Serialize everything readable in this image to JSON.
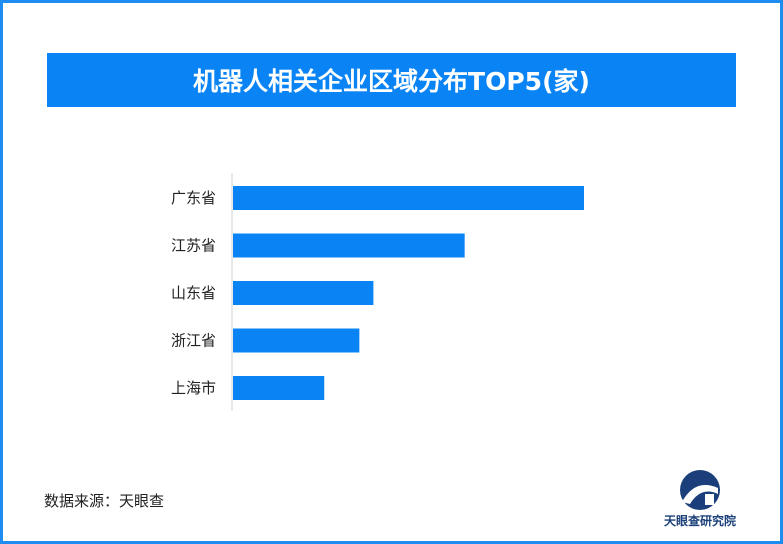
{
  "chart_data": {
    "type": "bar",
    "orientation": "horizontal",
    "title": "机器人相关企业区域分布TOP5(家)",
    "categories": [
      "广东省",
      "江苏省",
      "山东省",
      "浙江省",
      "上海市"
    ],
    "values": [
      100,
      66,
      40,
      36,
      26
    ],
    "xlim": [
      0,
      100
    ],
    "grid": false,
    "legend": "none",
    "bar_color": "#0a84f5"
  },
  "source": "数据来源：天眼查",
  "logo": {
    "text": "天眼查研究院",
    "icon": "tianyancha-logo-icon",
    "color": "#1a3f7a"
  }
}
